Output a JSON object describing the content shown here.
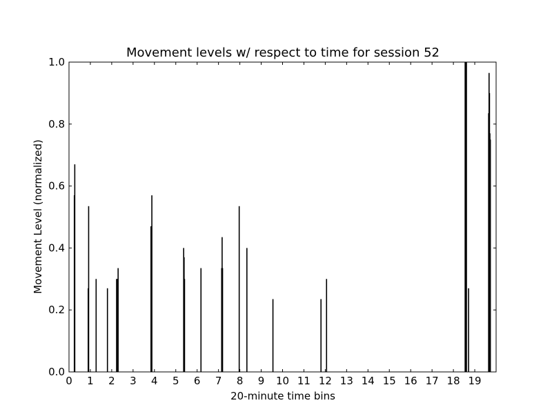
{
  "chart_data": {
    "type": "bar",
    "title": "Movement levels w/ respect to time for session 52",
    "xlabel": "20-minute time bins",
    "ylabel": "Movement Level (normalized)",
    "xlim": [
      0,
      20
    ],
    "ylim": [
      0,
      1.0
    ],
    "xticks": [
      "0",
      "1",
      "2",
      "3",
      "4",
      "5",
      "6",
      "7",
      "8",
      "9",
      "10",
      "11",
      "12",
      "13",
      "14",
      "15",
      "16",
      "17",
      "18",
      "19"
    ],
    "yticks": [
      "0.0",
      "0.2",
      "0.4",
      "0.6",
      "0.8",
      "1.0"
    ],
    "grid": false,
    "legend": "none",
    "bar_color": "#000000",
    "x": [
      0.25,
      0.27,
      0.9,
      0.92,
      1.27,
      1.8,
      2.23,
      2.25,
      2.3,
      3.84,
      3.86,
      3.88,
      5.37,
      5.39,
      5.41,
      6.18,
      7.15,
      7.17,
      7.19,
      7.97,
      8.33,
      9.55,
      11.8,
      12.06,
      18.55,
      18.57,
      18.59,
      18.61,
      18.71,
      19.65,
      19.67,
      19.69,
      19.71,
      19.73
    ],
    "values": [
      0.57,
      0.67,
      0.27,
      0.535,
      0.3,
      0.27,
      0.3,
      0.3,
      0.335,
      0.47,
      0.38,
      0.57,
      0.4,
      0.37,
      0.3,
      0.335,
      0.335,
      0.435,
      0.335,
      0.535,
      0.4,
      0.235,
      0.235,
      0.3,
      1.0,
      1.0,
      1.0,
      1.0,
      0.27,
      0.835,
      0.965,
      0.9,
      0.77,
      0.75
    ]
  }
}
